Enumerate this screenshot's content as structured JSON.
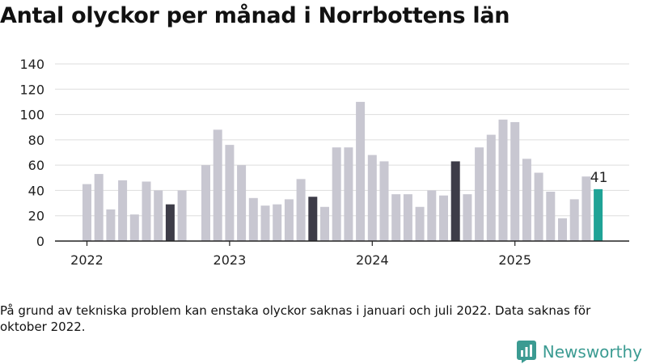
{
  "title": "Antal olyckor per månad i Norrbottens län",
  "note": "På grund av tekniska problem kan enstaka olyckor saknas i januari och juli 2022. Data saknas för oktober 2022.",
  "brand": {
    "name": "Newsworthy",
    "icon": "newsworthy-logo-icon",
    "color": "#3b9b92"
  },
  "chart_data": {
    "type": "bar",
    "title": "Antal olyckor per månad i Norrbottens län",
    "xlabel": "",
    "ylabel": "",
    "ylim": [
      0,
      140
    ],
    "yticks": [
      0,
      20,
      40,
      60,
      80,
      100,
      120,
      140
    ],
    "grid": true,
    "year_labels": [
      "2022",
      "2023",
      "2024",
      "2025"
    ],
    "categories": [
      "2022-01",
      "2022-02",
      "2022-03",
      "2022-04",
      "2022-05",
      "2022-06",
      "2022-07",
      "2022-08",
      "2022-09",
      "2022-10",
      "2022-11",
      "2022-12",
      "2023-01",
      "2023-02",
      "2023-03",
      "2023-04",
      "2023-05",
      "2023-06",
      "2023-07",
      "2023-08",
      "2023-09",
      "2023-10",
      "2023-11",
      "2023-12",
      "2024-01",
      "2024-02",
      "2024-03",
      "2024-04",
      "2024-05",
      "2024-06",
      "2024-07",
      "2024-08",
      "2024-09",
      "2024-10",
      "2024-11",
      "2024-12",
      "2025-01",
      "2025-02",
      "2025-03",
      "2025-04",
      "2025-05",
      "2025-06",
      "2025-07",
      "2025-08"
    ],
    "values": [
      45,
      53,
      25,
      48,
      21,
      47,
      40,
      29,
      40,
      null,
      60,
      88,
      76,
      60,
      34,
      28,
      29,
      33,
      49,
      35,
      27,
      74,
      74,
      110,
      68,
      63,
      37,
      37,
      27,
      40,
      36,
      63,
      37,
      74,
      84,
      96,
      94,
      65,
      54,
      39,
      18,
      33,
      51,
      41
    ],
    "highlighted_months": [
      "2022-08",
      "2023-08",
      "2024-08"
    ],
    "latest_month": "2025-08",
    "latest_label": "41",
    "colors": {
      "bar": "#c8c7d1",
      "highlight": "#3d3c48",
      "latest": "#1fa396",
      "grid": "#dddddd",
      "axis": "#222222"
    }
  }
}
